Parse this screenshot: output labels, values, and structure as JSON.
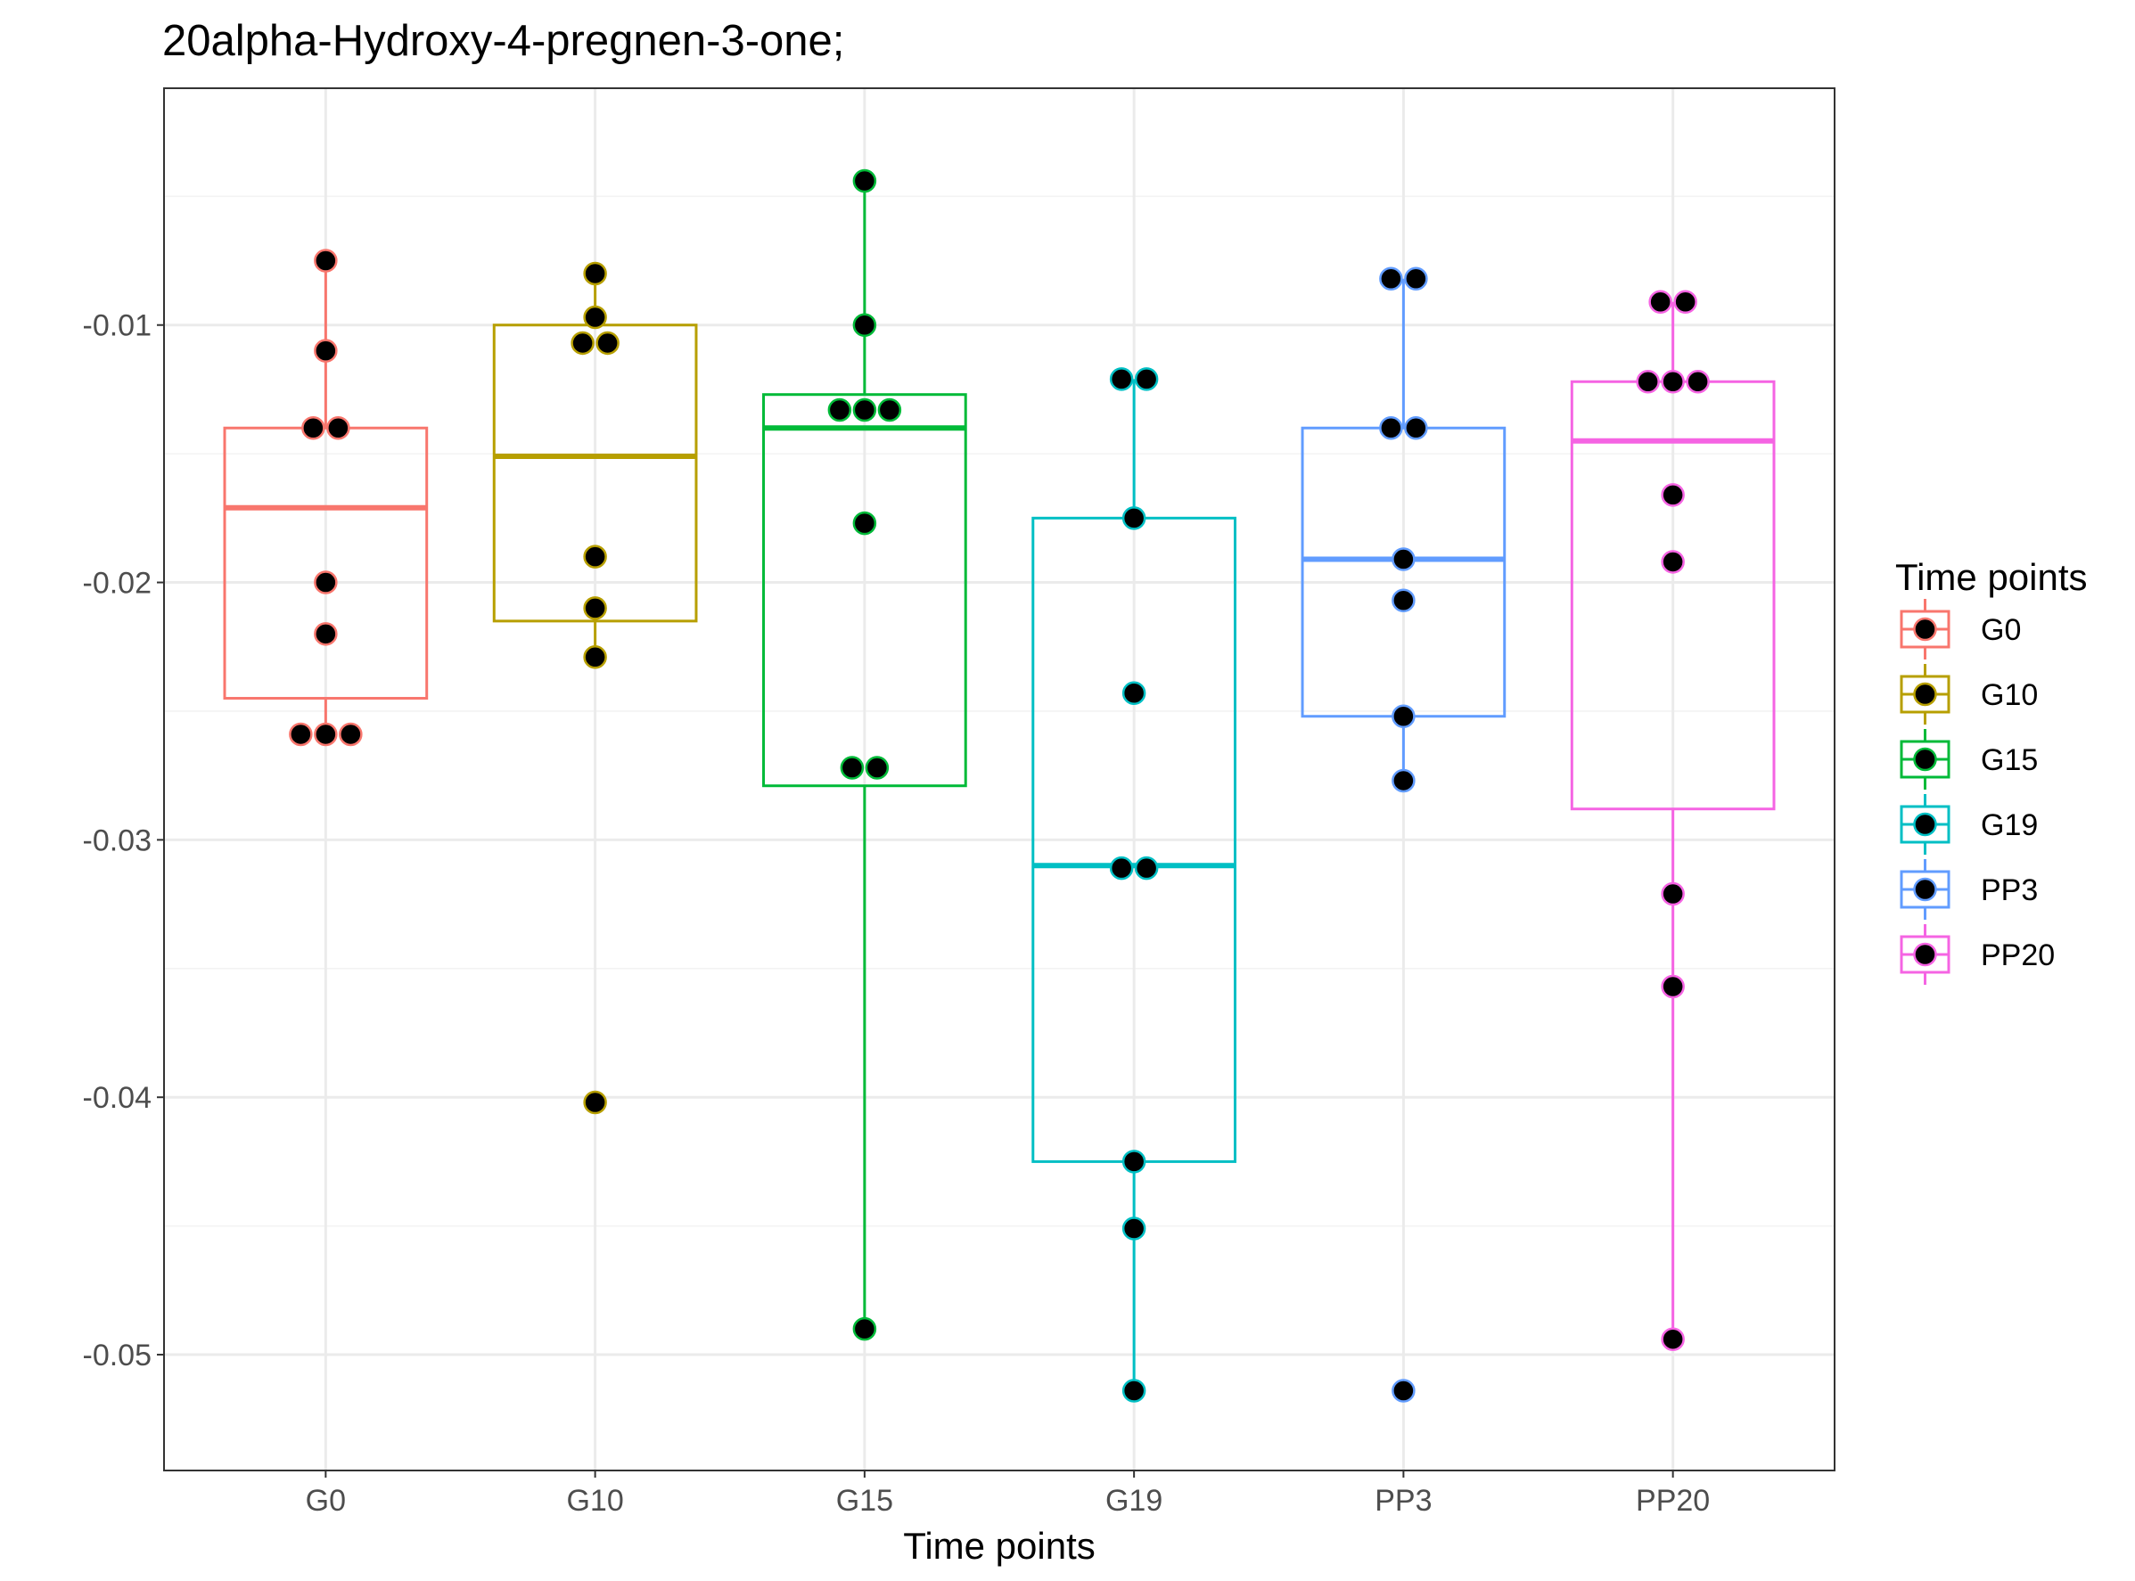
{
  "chart_data": {
    "type": "box",
    "title": "20alpha-Hydroxy-4-pregnen-3-one;",
    "xlabel": "Time points",
    "ylabel": "",
    "ylim": [
      -0.0545,
      -0.0008
    ],
    "yticks": [
      -0.01,
      -0.02,
      -0.03,
      -0.04,
      -0.05
    ],
    "ytick_labels": [
      "-0.01",
      "-0.02",
      "-0.03",
      "-0.04",
      "-0.05"
    ],
    "categories": [
      "G0",
      "G10",
      "G15",
      "G19",
      "PP3",
      "PP20"
    ],
    "grid": true,
    "legend": {
      "title": "Time points",
      "position": "right"
    },
    "series": [
      {
        "name": "G0",
        "color": "#F8766D",
        "box": {
          "lower_whisker": -0.0259,
          "q1": -0.0245,
          "median": -0.0171,
          "q3": -0.014,
          "upper_whisker": -0.0075
        },
        "points": [
          -0.0075,
          -0.011,
          -0.014,
          -0.014,
          -0.02,
          -0.022,
          -0.0259,
          -0.0259,
          -0.0259
        ]
      },
      {
        "name": "G10",
        "color": "#B79F00",
        "box": {
          "lower_whisker": -0.0229,
          "q1": -0.0215,
          "median": -0.0151,
          "q3": -0.01,
          "upper_whisker": -0.008
        },
        "points": [
          -0.008,
          -0.0097,
          -0.0107,
          -0.0107,
          -0.019,
          -0.021,
          -0.0229,
          -0.0402
        ]
      },
      {
        "name": "G15",
        "color": "#00BA38",
        "box": {
          "lower_whisker": -0.049,
          "q1": -0.0279,
          "median": -0.014,
          "q3": -0.0127,
          "upper_whisker": -0.0044
        },
        "points": [
          -0.0044,
          -0.01,
          -0.0133,
          -0.0133,
          -0.0133,
          -0.0177,
          -0.0272,
          -0.0272,
          -0.049
        ]
      },
      {
        "name": "G19",
        "color": "#00BFC4",
        "box": {
          "lower_whisker": -0.0514,
          "q1": -0.0425,
          "median": -0.031,
          "q3": -0.0175,
          "upper_whisker": -0.0121
        },
        "points": [
          -0.0121,
          -0.0121,
          -0.0175,
          -0.0243,
          -0.0311,
          -0.0311,
          -0.0425,
          -0.0451,
          -0.0514
        ]
      },
      {
        "name": "PP3",
        "color": "#619CFF",
        "box": {
          "lower_whisker": -0.0277,
          "q1": -0.0252,
          "median": -0.0191,
          "q3": -0.014,
          "upper_whisker": -0.0082
        },
        "points": [
          -0.0082,
          -0.0082,
          -0.014,
          -0.014,
          -0.0191,
          -0.0207,
          -0.0252,
          -0.0277,
          -0.0514
        ]
      },
      {
        "name": "PP20",
        "color": "#F564E3",
        "box": {
          "lower_whisker": -0.0494,
          "q1": -0.0288,
          "median": -0.0145,
          "q3": -0.0122,
          "upper_whisker": -0.0091
        },
        "points": [
          -0.0091,
          -0.0091,
          -0.0122,
          -0.0122,
          -0.0122,
          -0.0166,
          -0.0192,
          -0.0321,
          -0.0357,
          -0.0494
        ]
      }
    ]
  }
}
